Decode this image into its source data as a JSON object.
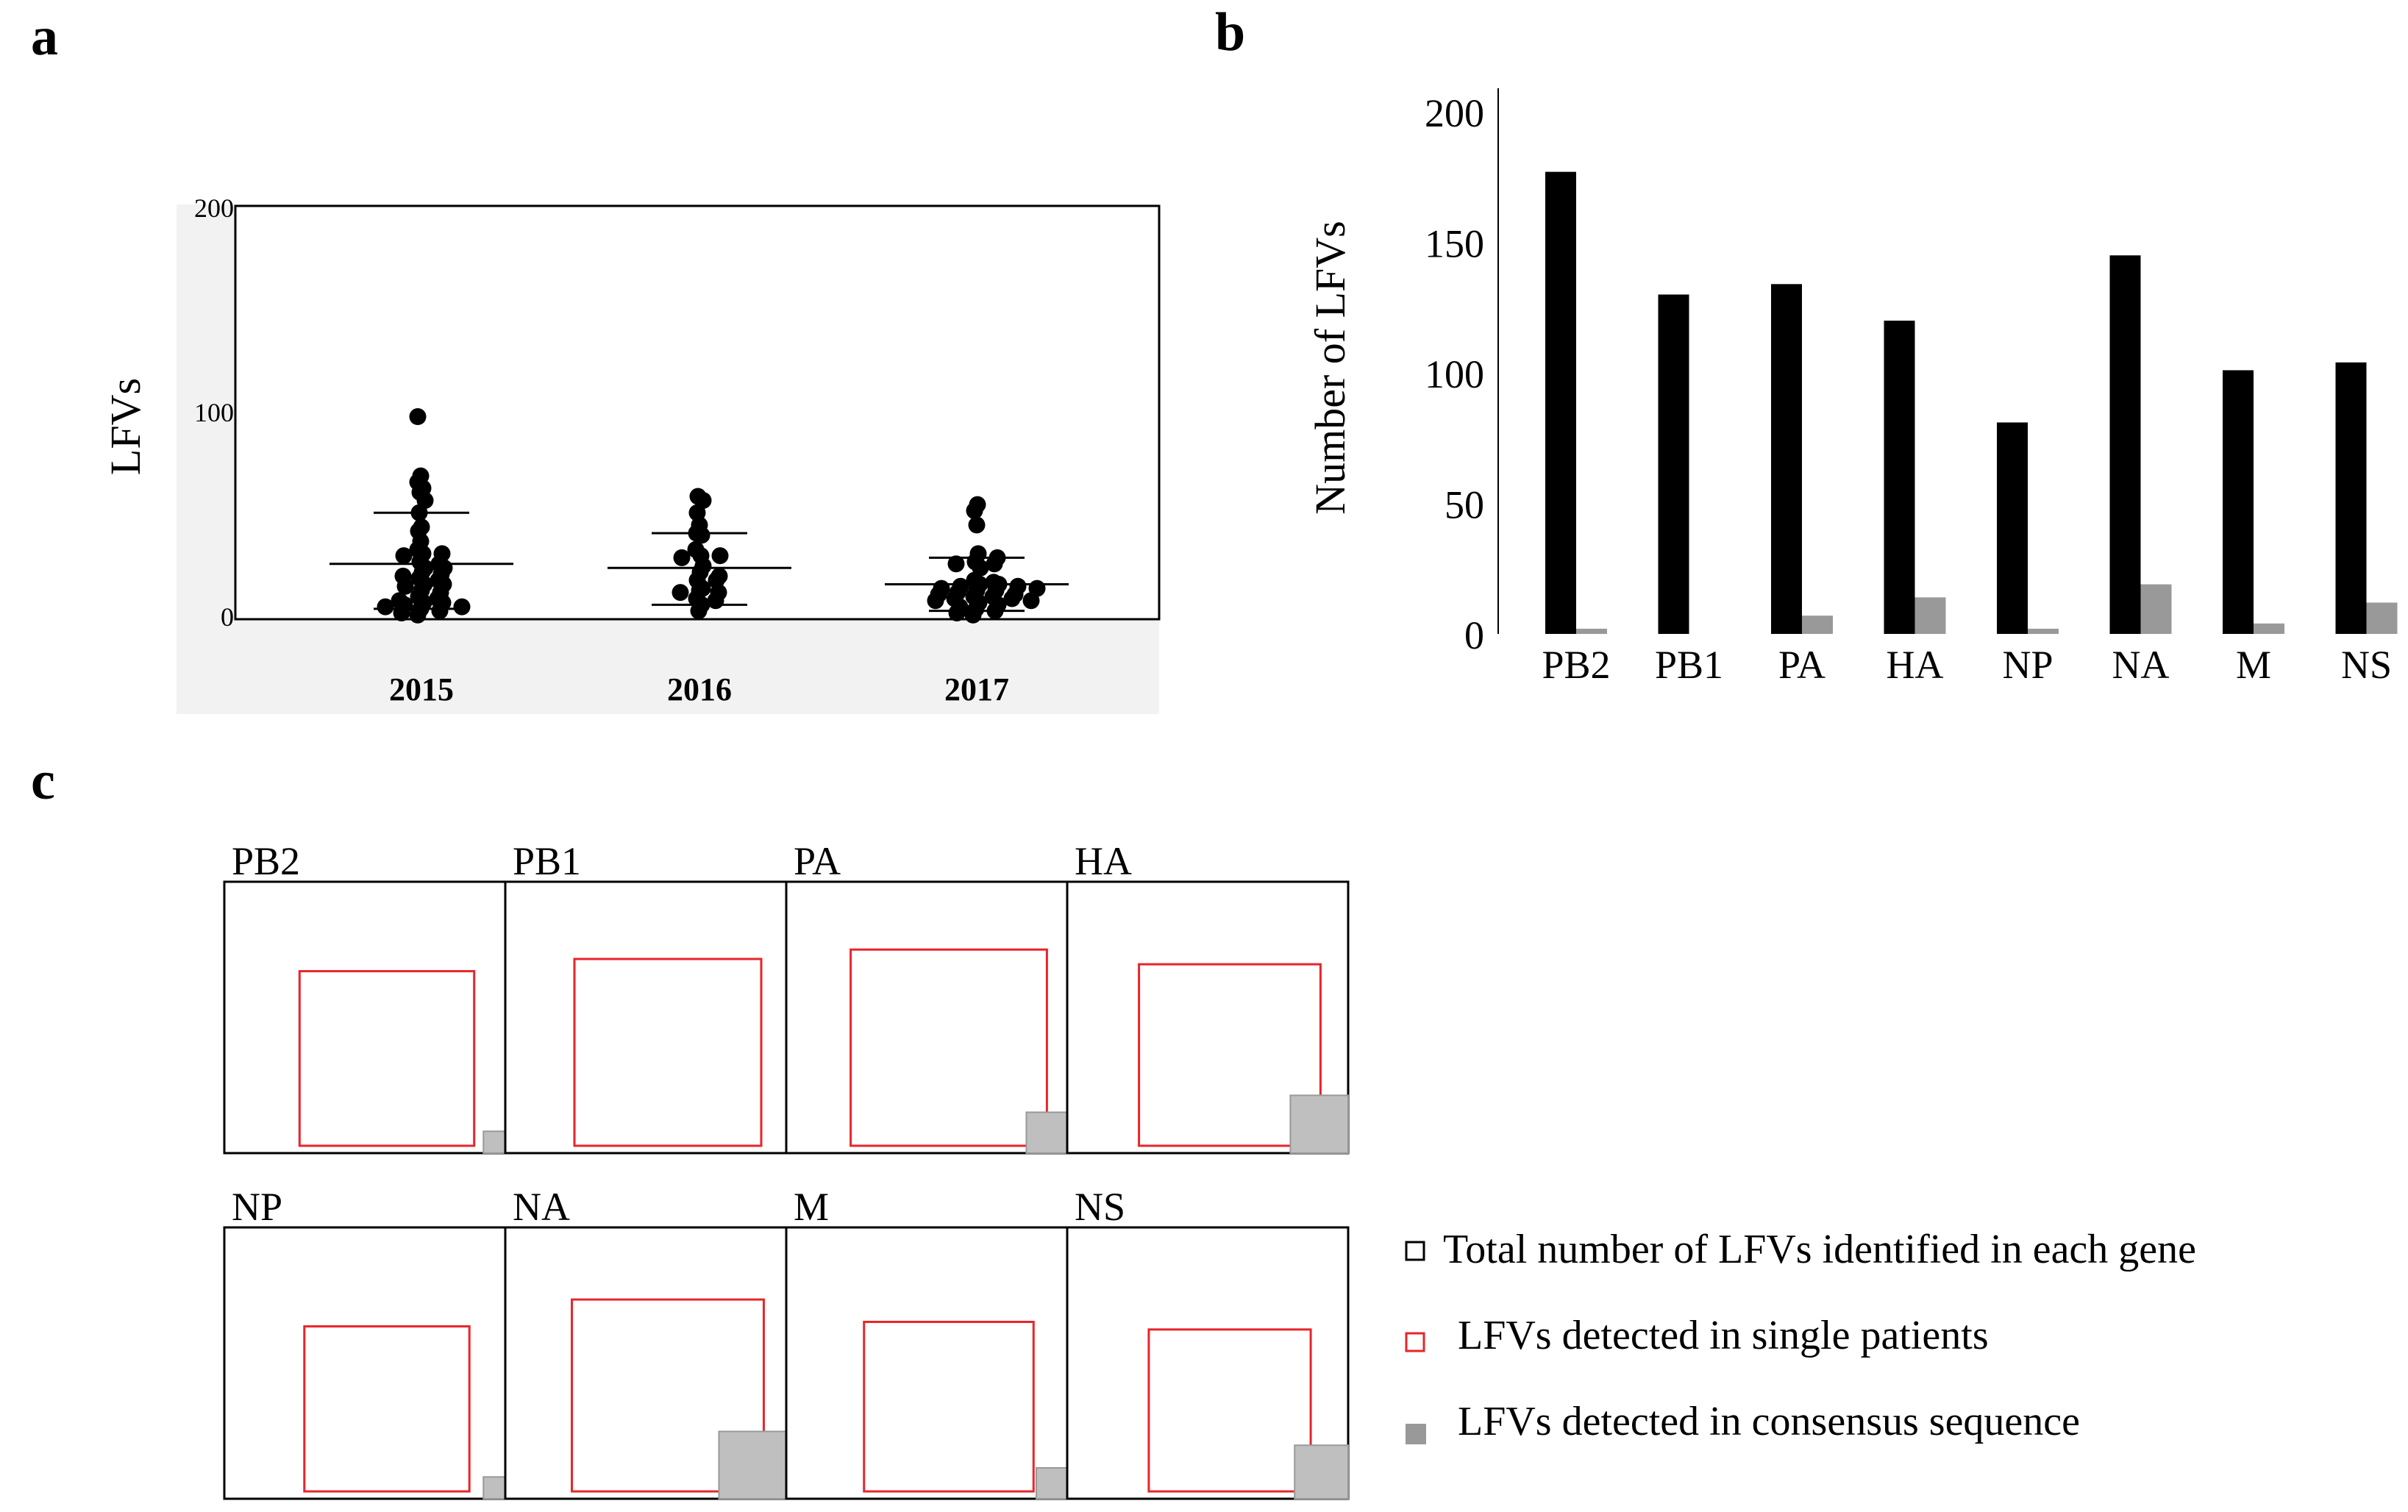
{
  "panel_labels": [
    "a",
    "b",
    "c"
  ],
  "colors": {
    "black": "#000000",
    "gray": "#999999",
    "red": "#e8252a",
    "light_gray": "#bfbfbf",
    "plot_bg": "#f2f2f2"
  },
  "chart_data": [
    {
      "id": "a",
      "type": "scatter",
      "title": "",
      "ylabel": "LFVs",
      "xlabel": "",
      "ylim": [
        0,
        200
      ],
      "yticks": [
        "0",
        "100",
        "200"
      ],
      "categories": [
        "2015",
        "2016",
        "2017"
      ],
      "groups": [
        {
          "name": "2015",
          "mean": 26,
          "sd_low": 4,
          "sd_high": 51,
          "points": [
            98,
            69,
            66,
            63,
            61,
            57,
            51,
            44,
            42,
            37,
            33,
            31,
            31,
            30,
            27,
            26,
            24,
            24,
            22,
            21,
            20,
            19,
            18,
            16,
            16,
            15,
            13,
            12,
            10,
            9,
            8,
            7,
            7,
            6,
            5,
            5,
            4,
            3,
            2,
            1
          ]
        },
        {
          "name": "2016",
          "mean": 24,
          "sd_low": 6,
          "sd_high": 41,
          "points": [
            59,
            57,
            51,
            45,
            41,
            40,
            33,
            30,
            30,
            29,
            25,
            22,
            20,
            18,
            18,
            14,
            13,
            12,
            12,
            9,
            8,
            6,
            3
          ]
        },
        {
          "name": "2017",
          "mean": 16,
          "sd_low": 3,
          "sd_high": 29,
          "points": [
            55,
            52,
            45,
            31,
            29,
            27,
            26,
            26,
            24,
            18,
            17,
            16,
            16,
            15,
            15,
            14,
            14,
            13,
            13,
            12,
            11,
            11,
            10,
            10,
            9,
            9,
            8,
            8,
            7,
            6,
            5,
            4,
            3,
            2,
            1
          ]
        }
      ]
    },
    {
      "id": "b",
      "type": "bar",
      "title": "",
      "ylabel": "Number of LFVs",
      "xlabel": "",
      "ylim": [
        0,
        210
      ],
      "yticks": [
        "0",
        "50",
        "100",
        "150",
        "200"
      ],
      "categories": [
        "PB2",
        "PB1",
        "PA",
        "HA",
        "NP",
        "NA",
        "M",
        "NS"
      ],
      "series": [
        {
          "name": "Total",
          "color": "#000000",
          "values": [
            177,
            130,
            134,
            120,
            81,
            145,
            101,
            104
          ]
        },
        {
          "name": "Consensus",
          "color": "#999999",
          "values": [
            2,
            0,
            7,
            14,
            2,
            19,
            4,
            12
          ]
        }
      ]
    },
    {
      "id": "c",
      "type": "area-squares",
      "title": "",
      "genes": [
        {
          "name": "PB2",
          "total": 177,
          "single": 92,
          "consensus": 2
        },
        {
          "name": "PB1",
          "total": 130,
          "single": 110,
          "consensus": 0
        },
        {
          "name": "PA",
          "total": 134,
          "single": 125,
          "consensus": 7
        },
        {
          "name": "HA",
          "total": 120,
          "single": 102,
          "consensus": 14
        },
        {
          "name": "NP",
          "total": 81,
          "single": 79,
          "consensus": 2
        },
        {
          "name": "NA",
          "total": 145,
          "single": 118,
          "consensus": 19
        },
        {
          "name": "M",
          "total": 101,
          "single": 85,
          "consensus": 4
        },
        {
          "name": "NS",
          "total": 104,
          "single": 75,
          "consensus": 12
        }
      ],
      "legend": [
        {
          "key": "total",
          "label": "Total number of LFVs identified in each gene"
        },
        {
          "key": "single",
          "label": "LFVs detected in single patients"
        },
        {
          "key": "consensus",
          "label": "LFVs detected in consensus sequence"
        }
      ]
    }
  ]
}
